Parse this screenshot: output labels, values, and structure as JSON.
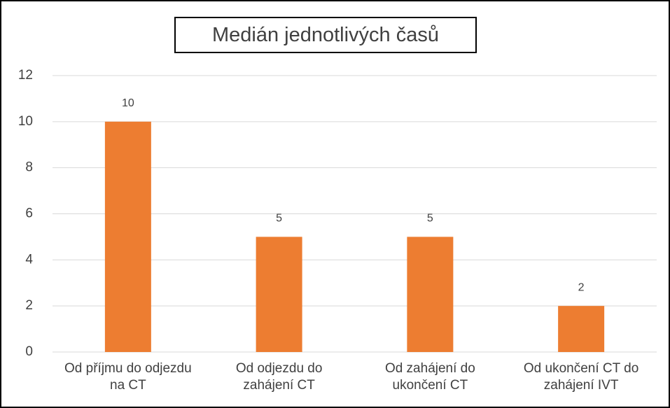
{
  "chart_data": {
    "type": "bar",
    "title": "Medián jednotlivých časů",
    "categories": [
      "Od příjmu do odjezdu na CT",
      "Od odjezdu do zahájení CT",
      "Od zahájení do ukončení CT",
      "Od ukončení CT do zahájení IVT"
    ],
    "values": [
      10,
      5,
      5,
      2
    ],
    "color": "#ed7d31",
    "ylim": [
      0,
      12
    ],
    "yticks": [
      0,
      2,
      4,
      6,
      8,
      10,
      12
    ],
    "grid": true
  }
}
